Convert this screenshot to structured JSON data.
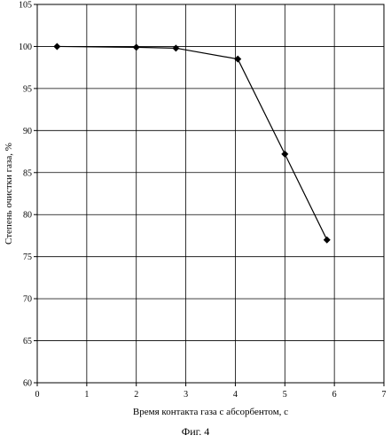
{
  "chart_data": {
    "type": "line",
    "title": "",
    "xlabel": "Время контакта газа с абсорбентом, с",
    "ylabel": "Степень очистки газа, %",
    "xlim": [
      0,
      7
    ],
    "ylim": [
      60,
      105
    ],
    "xticks": [
      "0",
      "1",
      "2",
      "3",
      "4",
      "5",
      "6",
      "7"
    ],
    "yticks": [
      "60",
      "65",
      "70",
      "75",
      "80",
      "85",
      "90",
      "95",
      "100",
      "105"
    ],
    "grid": true,
    "legend": "none",
    "series": [
      {
        "marker": "diamond",
        "color": "#000000",
        "x": [
          0.4,
          2.0,
          2.8,
          4.05,
          5.0,
          5.85
        ],
        "y": [
          100.0,
          99.9,
          99.8,
          98.5,
          87.2,
          77.0
        ]
      }
    ]
  },
  "caption": "Фиг. 4"
}
